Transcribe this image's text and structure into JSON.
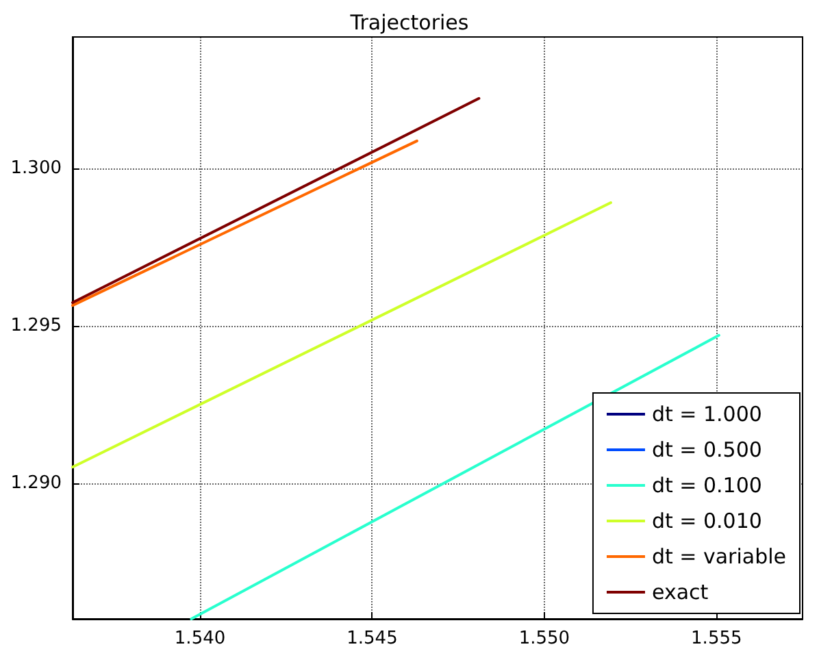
{
  "chart_data": {
    "type": "line",
    "title": "Trajectories",
    "xlim": [
      1.5363,
      1.5575
    ],
    "ylim": [
      1.2857,
      1.30417
    ],
    "xticks": [
      {
        "value": 1.54,
        "label": "1.540"
      },
      {
        "value": 1.545,
        "label": "1.545"
      },
      {
        "value": 1.55,
        "label": "1.550"
      },
      {
        "value": 1.555,
        "label": "1.555"
      }
    ],
    "yticks": [
      {
        "value": 1.29,
        "label": "1.290"
      },
      {
        "value": 1.295,
        "label": "1.295"
      },
      {
        "value": 1.3,
        "label": "1.300"
      }
    ],
    "grid": true,
    "legend": "bottom right",
    "marker": "none",
    "line_style": "solid",
    "series": [
      {
        "name": "dt = 1.000",
        "color": "#00007f"
      },
      {
        "name": "dt = 0.500",
        "color": "#004cff"
      },
      {
        "name": "dt = 0.100",
        "color": "#29ffce",
        "x": [
          1.53975,
          1.55507
        ],
        "values": [
          1.2857,
          1.2947
        ]
      },
      {
        "name": "dt = 0.010",
        "color": "#ceff29",
        "x": [
          1.5363,
          1.55193
        ],
        "values": [
          1.29052,
          1.29891
        ]
      },
      {
        "name": "dt = variable",
        "color": "#ff6800",
        "x": [
          1.5363,
          1.5463
        ],
        "values": [
          1.29565,
          1.30087
        ]
      },
      {
        "name": "exact",
        "color": "#7f0000",
        "x": [
          1.5363,
          1.5481
        ],
        "values": [
          1.29574,
          1.30222
        ]
      }
    ]
  }
}
